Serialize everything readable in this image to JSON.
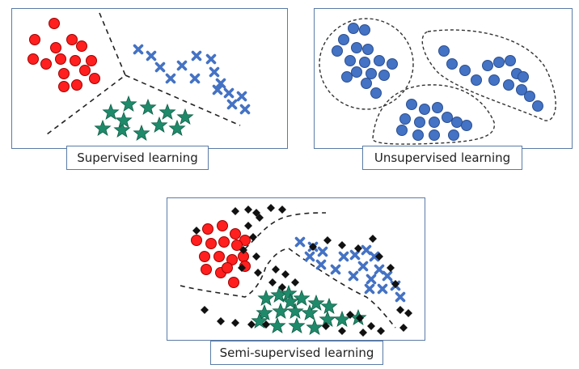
{
  "panels": {
    "supervised": {
      "caption": "Supervised learning"
    },
    "unsupervised": {
      "caption": "Unsupervised learning"
    },
    "semi_supervised": {
      "caption": "Semi-supervised learning"
    }
  },
  "colors": {
    "red_class": "#ff1f1f",
    "blue_class": "#4472c4",
    "green_class": "#1f8a6a",
    "unlabeled": "#111111",
    "border": "#5a7ba6"
  },
  "markers": {
    "class_a": "red-circle",
    "class_b": "blue-cross",
    "class_c": "green-star",
    "unlabeled": "black-diamond",
    "cluster": "blue-circle"
  }
}
